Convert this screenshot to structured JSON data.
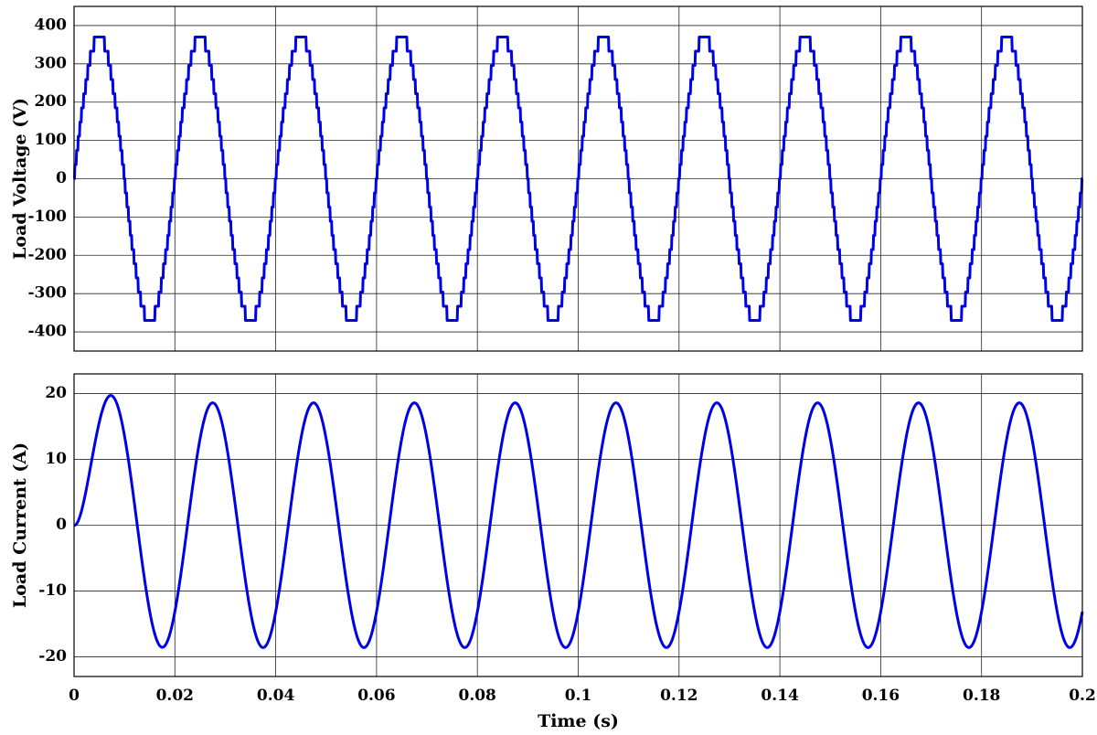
{
  "chart_data": [
    {
      "type": "line",
      "panel": "top",
      "title": "",
      "ylabel": "Load Voltage (V)",
      "xlabel": "",
      "xlim": [
        0,
        0.2
      ],
      "ylim": [
        -450,
        450
      ],
      "yticks": [
        400,
        300,
        200,
        100,
        0,
        -100,
        -200,
        -300,
        -400
      ],
      "ytick_labels": [
        "400",
        "300",
        "200",
        "100",
        "0",
        "-100",
        "-200",
        "-300",
        "-400"
      ],
      "xticks": [
        0,
        0.02,
        0.04,
        0.06,
        0.08,
        0.1,
        0.12,
        0.14,
        0.16,
        0.18,
        0.2
      ],
      "grid": true,
      "waveform": "multilevel staircase sine",
      "frequency_hz": 50,
      "peak": 370,
      "levels": 21,
      "color": "#0000e6"
    },
    {
      "type": "line",
      "panel": "bottom",
      "title": "",
      "ylabel": "Load Current (A)",
      "xlabel": "Time (s)",
      "xlim": [
        0,
        0.2
      ],
      "ylim": [
        -23,
        23
      ],
      "yticks": [
        20,
        10,
        0,
        -10,
        -20
      ],
      "ytick_labels": [
        "20",
        "10",
        "0",
        "-10",
        "-20"
      ],
      "xticks": [
        0,
        0.02,
        0.04,
        0.06,
        0.08,
        0.1,
        0.12,
        0.14,
        0.16,
        0.18,
        0.2
      ],
      "xtick_labels": [
        "0",
        "0.02",
        "0.04",
        "0.06",
        "0.08",
        "0.1",
        "0.12",
        "0.14",
        "0.16",
        "0.18",
        "0.2"
      ],
      "grid": true,
      "waveform": "sine with initial transient",
      "frequency_hz": 50,
      "peak": 18.6,
      "color": "#0000e6"
    }
  ]
}
